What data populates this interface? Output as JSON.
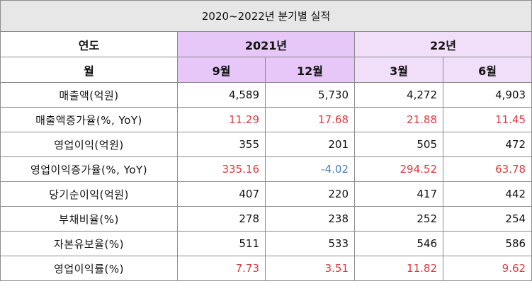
{
  "title": "2020~2022년 분기별 실적",
  "header": {
    "year_label": "연도",
    "year_2021": "2021년",
    "year_22": "22년",
    "month_label": "월",
    "months": [
      "9월",
      "12월",
      "3월",
      "6월"
    ]
  },
  "rows": [
    {
      "label": "매출액(억원)",
      "values": [
        "4,589",
        "5,730",
        "4,272",
        "4,903"
      ],
      "colors": [
        "black",
        "black",
        "black",
        "black"
      ]
    },
    {
      "label": "매출액증가율(%, YoY)",
      "values": [
        "11.29",
        "17.68",
        "21.88",
        "11.45"
      ],
      "colors": [
        "red",
        "red",
        "red",
        "red"
      ]
    },
    {
      "label": "영업이익(억원)",
      "values": [
        "355",
        "201",
        "505",
        "472"
      ],
      "colors": [
        "black",
        "black",
        "black",
        "black"
      ]
    },
    {
      "label": "영업이익증가율(%, YoY)",
      "values": [
        "335.16",
        "-4.02",
        "294.52",
        "63.78"
      ],
      "colors": [
        "red",
        "blue",
        "red",
        "red"
      ]
    },
    {
      "label": "당기순이익(억원)",
      "values": [
        "407",
        "220",
        "417",
        "442"
      ],
      "colors": [
        "black",
        "black",
        "black",
        "black"
      ]
    },
    {
      "label": "부채비율(%)",
      "values": [
        "278",
        "238",
        "252",
        "254"
      ],
      "colors": [
        "black",
        "black",
        "black",
        "black"
      ]
    },
    {
      "label": "자본유보율(%)",
      "values": [
        "511",
        "533",
        "546",
        "586"
      ],
      "colors": [
        "black",
        "black",
        "black",
        "black"
      ]
    },
    {
      "label": "영업이익률(%)",
      "values": [
        "7.73",
        "3.51",
        "11.82",
        "9.62"
      ],
      "colors": [
        "red",
        "red",
        "red",
        "red"
      ]
    }
  ]
}
